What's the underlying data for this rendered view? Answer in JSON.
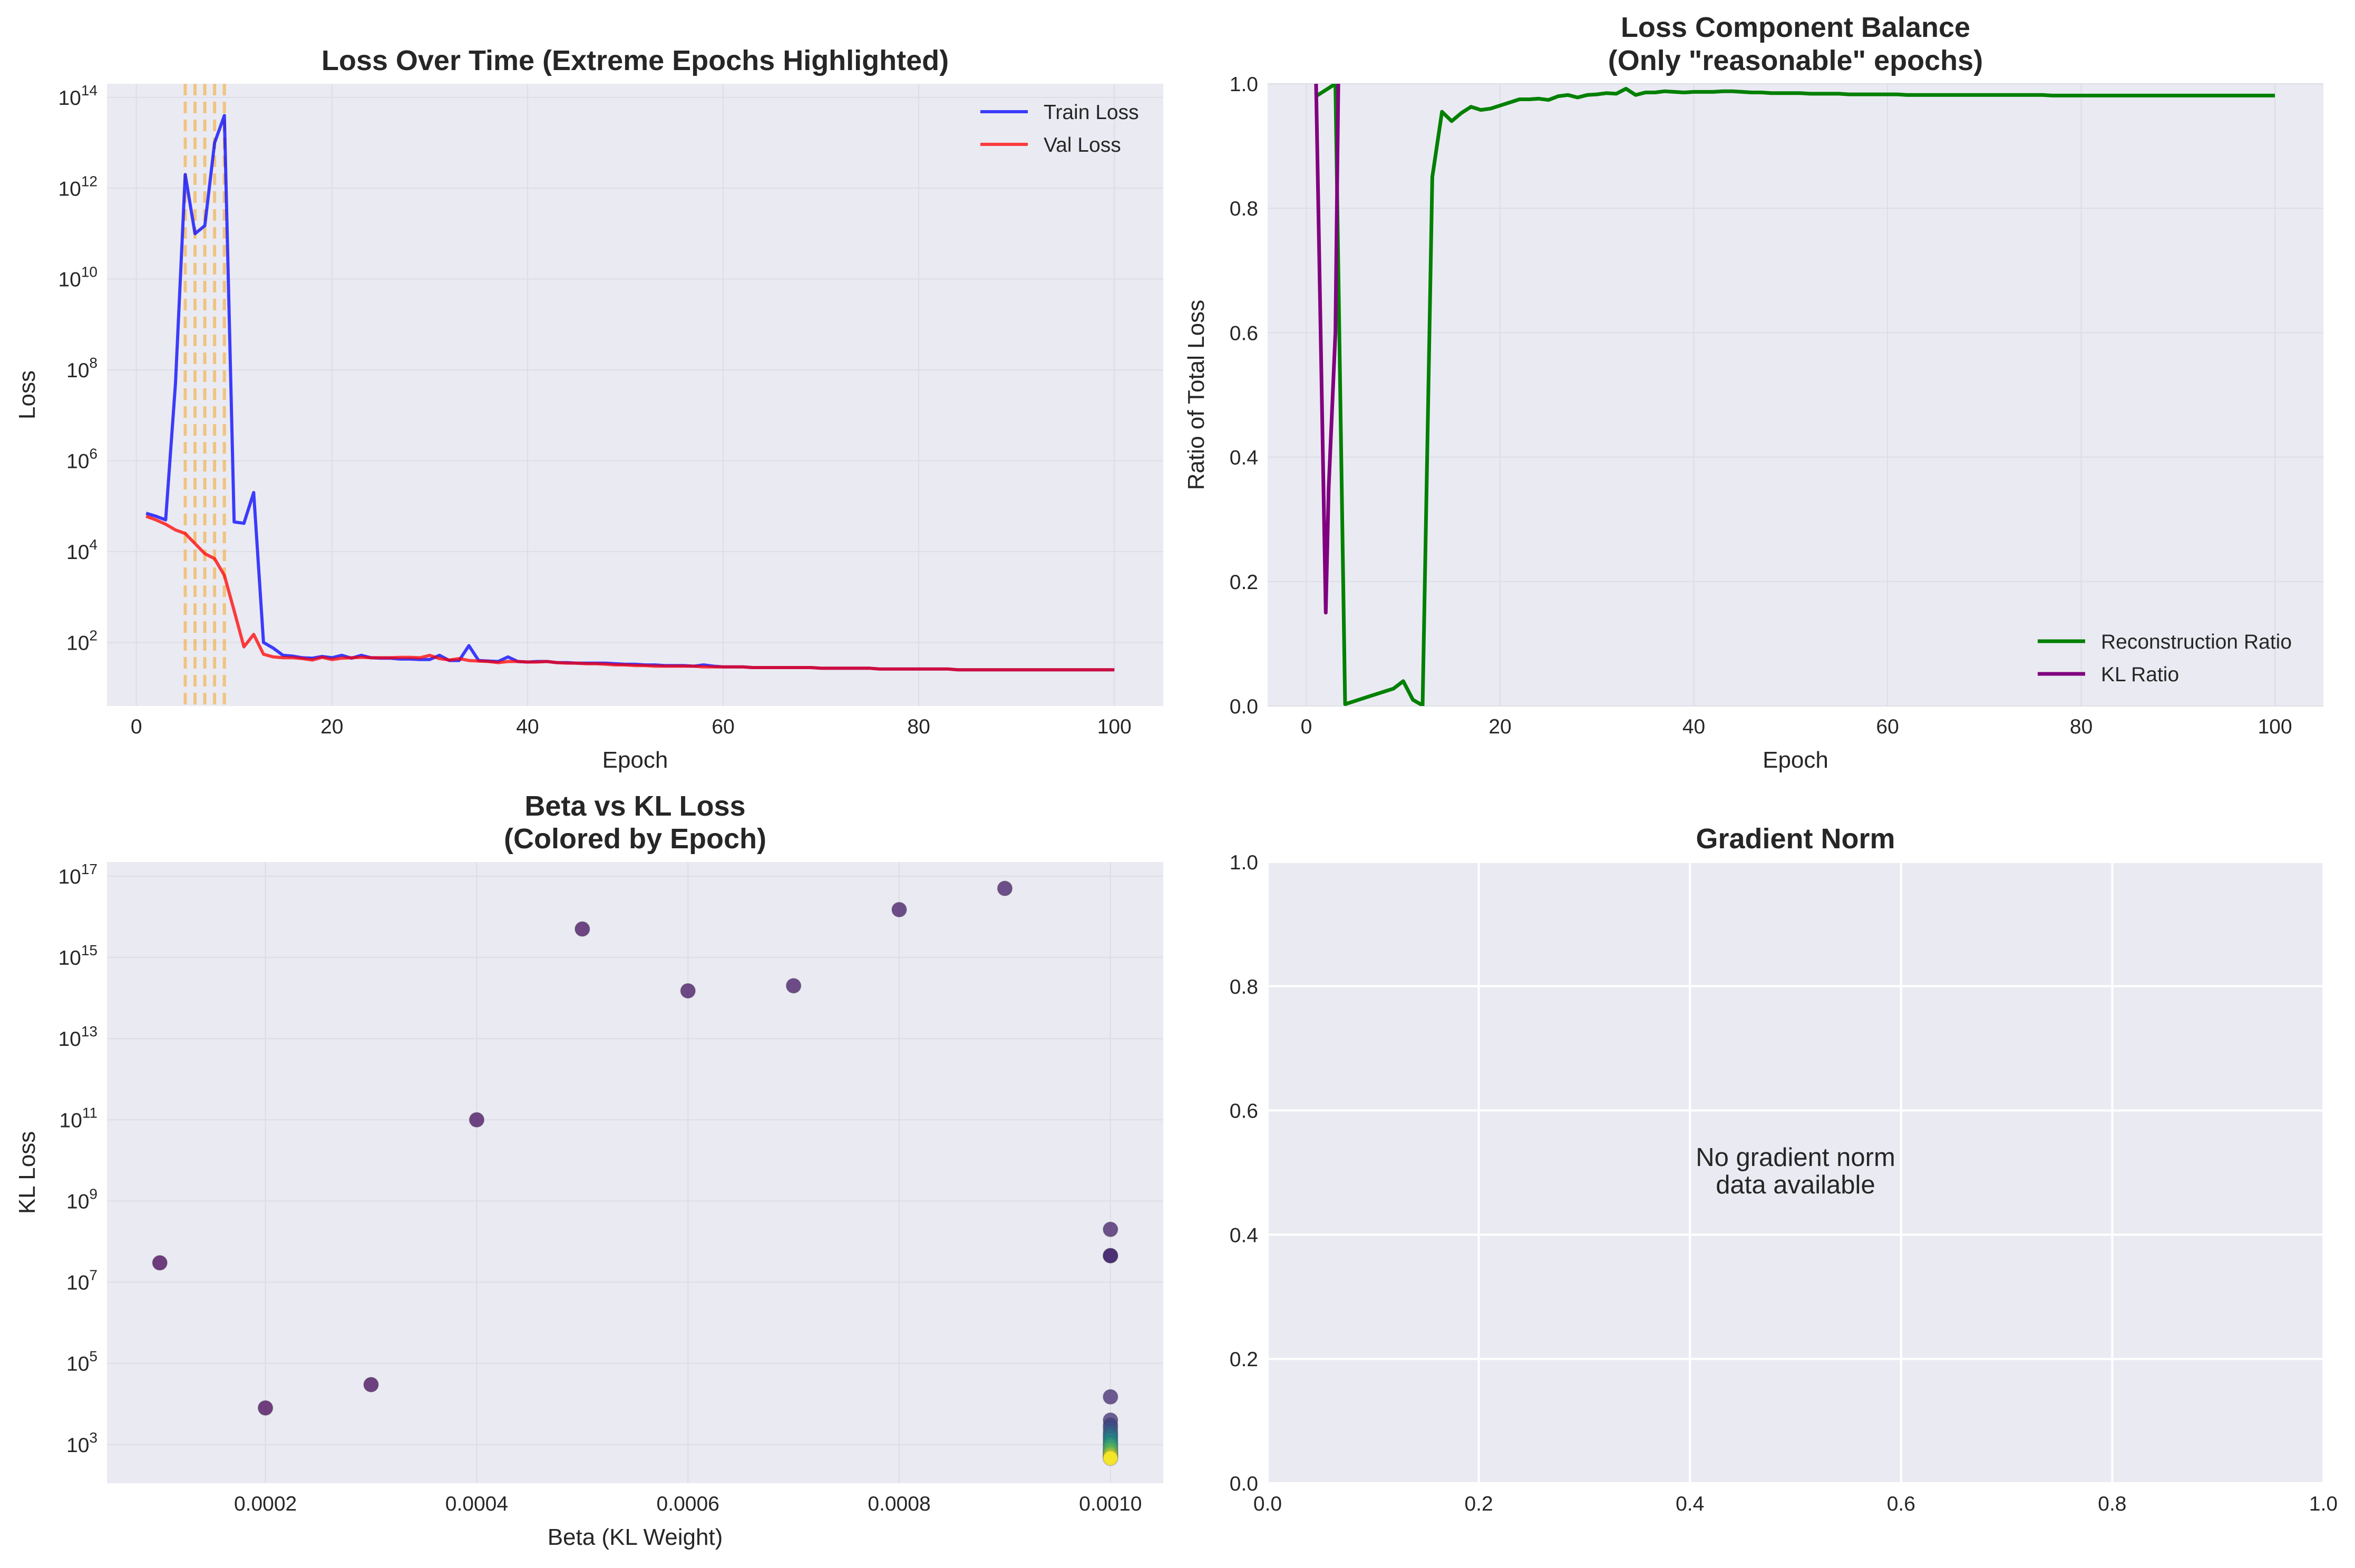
{
  "chart_data": [
    {
      "type": "line",
      "title": "Loss Over Time (Extreme Epochs Highlighted)",
      "xlabel": "Epoch",
      "ylabel": "Loss",
      "yscale": "log",
      "xlim": [
        -3,
        105
      ],
      "ylim_log10": [
        0.6,
        14.3
      ],
      "xticks": [
        "0",
        "20",
        "40",
        "60",
        "80",
        "100"
      ],
      "yticks": [
        "10",
        "10",
        "10",
        "10",
        "10",
        "10",
        "10"
      ],
      "ytick_exponents": [
        "2",
        "4",
        "6",
        "8",
        "10",
        "12",
        "14"
      ],
      "highlighted_epochs": [
        5,
        6,
        7,
        8,
        9
      ],
      "legend": "upper right",
      "grid": true,
      "x": [
        1,
        2,
        3,
        4,
        5,
        6,
        7,
        8,
        9,
        10,
        11,
        12,
        13,
        14,
        15,
        16,
        17,
        18,
        19,
        20,
        21,
        22,
        23,
        24,
        25,
        26,
        27,
        28,
        29,
        30,
        31,
        32,
        33,
        34,
        35,
        36,
        37,
        38,
        39,
        40,
        41,
        42,
        43,
        44,
        45,
        46,
        47,
        48,
        49,
        50,
        51,
        52,
        53,
        54,
        55,
        56,
        57,
        58,
        59,
        60,
        61,
        62,
        63,
        64,
        65,
        66,
        67,
        68,
        69,
        70,
        71,
        72,
        73,
        74,
        75,
        76,
        77,
        78,
        79,
        80,
        81,
        82,
        83,
        84,
        85,
        86,
        87,
        88,
        89,
        90,
        91,
        92,
        93,
        94,
        95,
        96,
        97,
        98,
        99,
        100
      ],
      "series": [
        {
          "name": "Train Loss",
          "color": "#0000ff",
          "values": [
            70000,
            60000,
            50000,
            50000000,
            2000000000000,
            100000000000,
            150000000000,
            10000000000000,
            40000000000000,
            45000,
            42000,
            200000,
            100,
            75,
            52,
            50,
            46,
            45,
            49,
            46,
            52,
            45,
            52,
            46,
            45,
            45,
            43,
            43,
            42,
            42,
            52,
            40,
            40,
            85,
            40,
            39,
            38,
            48,
            38,
            37,
            38,
            38,
            36,
            36,
            35,
            35,
            35,
            35,
            34,
            33,
            33,
            32,
            32,
            31,
            31,
            31,
            30,
            32,
            30,
            29,
            29,
            29,
            28,
            28,
            28,
            28,
            28,
            28,
            28,
            27,
            27,
            27,
            27,
            27,
            27,
            26,
            26,
            26,
            26,
            26,
            26,
            26,
            26,
            25,
            25,
            25,
            25,
            25,
            25,
            25,
            25,
            25,
            25,
            25,
            25,
            25,
            25,
            25,
            25,
            25
          ]
        },
        {
          "name": "Val Loss",
          "color": "#ff0000",
          "values": [
            60000,
            50000,
            40000,
            30000,
            25000,
            15000,
            9000,
            7000,
            3000,
            500,
            80,
            150,
            55,
            48,
            46,
            46,
            44,
            41,
            47,
            42,
            45,
            46,
            47,
            46,
            46,
            46,
            47,
            47,
            46,
            52,
            44,
            41,
            44,
            40,
            39,
            38,
            36,
            38,
            38,
            37,
            37,
            38,
            36,
            35,
            35,
            34,
            34,
            33,
            32,
            32,
            31,
            31,
            30,
            30,
            30,
            30,
            30,
            29,
            29,
            29,
            29,
            29,
            28,
            28,
            28,
            28,
            28,
            28,
            28,
            27,
            27,
            27,
            27,
            27,
            27,
            26,
            26,
            26,
            26,
            26,
            26,
            26,
            26,
            25,
            25,
            25,
            25,
            25,
            25,
            25,
            25,
            25,
            25,
            25,
            25,
            25,
            25,
            25,
            25,
            25
          ]
        }
      ]
    },
    {
      "type": "line",
      "title": "Loss Component Balance",
      "subtitle": "(Only \"reasonable\" epochs)",
      "xlabel": "Epoch",
      "ylabel": "Ratio of Total Loss",
      "xlim": [
        -4,
        105
      ],
      "ylim": [
        0,
        1
      ],
      "xticks": [
        "0",
        "20",
        "40",
        "60",
        "80",
        "100"
      ],
      "yticks": [
        "0.0",
        "0.2",
        "0.4",
        "0.6",
        "0.8",
        "1.0"
      ],
      "legend": "lower right",
      "grid": true,
      "series": [
        {
          "name": "Reconstruction Ratio",
          "color": "#008000",
          "x": [
            1,
            2,
            3,
            4,
            5,
            6,
            7,
            8,
            9,
            10,
            11,
            12,
            13,
            14,
            15,
            16,
            17,
            18,
            19,
            20,
            21,
            22,
            23,
            24,
            25,
            26,
            27,
            28,
            29,
            30,
            31,
            32,
            33,
            34,
            35,
            36,
            37,
            38,
            39,
            40,
            41,
            42,
            43,
            44,
            45,
            46,
            47,
            48,
            49,
            50,
            51,
            52,
            53,
            54,
            55,
            56,
            57,
            58,
            59,
            60,
            61,
            62,
            63,
            64,
            65,
            66,
            67,
            68,
            69,
            70,
            71,
            72,
            73,
            74,
            75,
            76,
            77,
            78,
            79,
            80,
            81,
            82,
            83,
            84,
            85,
            86,
            87,
            88,
            89,
            90,
            91,
            92,
            93,
            94,
            95,
            96,
            97,
            98,
            99,
            100
          ],
          "values": [
            0.98,
            0.99,
            1.0,
            0.003,
            0.008,
            0.013,
            0.018,
            0.023,
            0.028,
            0.04,
            0.01,
            0.001,
            0.85,
            0.955,
            0.94,
            0.953,
            0.963,
            0.958,
            0.96,
            0.965,
            0.97,
            0.975,
            0.975,
            0.976,
            0.974,
            0.98,
            0.982,
            0.978,
            0.982,
            0.983,
            0.985,
            0.984,
            0.992,
            0.982,
            0.986,
            0.986,
            0.988,
            0.987,
            0.986,
            0.987,
            0.987,
            0.987,
            0.988,
            0.988,
            0.987,
            0.986,
            0.986,
            0.985,
            0.985,
            0.985,
            0.985,
            0.984,
            0.984,
            0.984,
            0.984,
            0.983,
            0.983,
            0.983,
            0.983,
            0.983,
            0.983,
            0.982,
            0.982,
            0.982,
            0.982,
            0.982,
            0.982,
            0.982,
            0.982,
            0.982,
            0.982,
            0.982,
            0.982,
            0.982,
            0.982,
            0.982,
            0.981,
            0.981,
            0.981,
            0.981,
            0.981,
            0.981,
            0.981,
            0.981,
            0.981,
            0.981,
            0.981,
            0.981,
            0.981,
            0.981,
            0.981,
            0.981,
            0.981,
            0.981,
            0.981,
            0.981,
            0.981,
            0.981,
            0.981,
            0.981
          ]
        },
        {
          "name": "KL Ratio",
          "color": "#800080",
          "x": [
            1,
            2,
            2.3,
            3,
            3.3
          ],
          "values": [
            1.0,
            0.15,
            0.35,
            0.6,
            1.0
          ]
        }
      ]
    },
    {
      "type": "scatter",
      "title": "Beta vs KL Loss",
      "subtitle": "(Colored by Epoch)",
      "xlabel": "Beta (KL Weight)",
      "ylabel": "KL Loss",
      "yscale": "log",
      "xlim": [
        5e-05,
        0.00105
      ],
      "ylim_log10": [
        2.05,
        17.35
      ],
      "xticks": [
        "0.0002",
        "0.0004",
        "0.0006",
        "0.0008",
        "0.0010"
      ],
      "yticks": [
        "10",
        "10",
        "10",
        "10",
        "10",
        "10",
        "10",
        "10"
      ],
      "ytick_exponents": [
        "3",
        "5",
        "7",
        "9",
        "11",
        "13",
        "15",
        "17"
      ],
      "grid": true,
      "colormap": "viridis",
      "points": [
        {
          "x": 0.0001,
          "y": 30000000,
          "epoch": 1
        },
        {
          "x": 0.0002,
          "y": 8000,
          "epoch": 2
        },
        {
          "x": 0.0003,
          "y": 30000,
          "epoch": 3
        },
        {
          "x": 0.0004,
          "y": 100000000000,
          "epoch": 4
        },
        {
          "x": 0.0005,
          "y": 5000000000000000,
          "epoch": 5
        },
        {
          "x": 0.0006,
          "y": 150000000000000,
          "epoch": 6
        },
        {
          "x": 0.0007,
          "y": 200000000000000,
          "epoch": 7
        },
        {
          "x": 0.0008,
          "y": 15000000000000000,
          "epoch": 8
        },
        {
          "x": 0.0009,
          "y": 50000000000000000,
          "epoch": 9
        },
        {
          "x": 0.001,
          "y": 200000000,
          "epoch": 10
        },
        {
          "x": 0.001,
          "y": 45000000,
          "epoch": 11
        },
        {
          "x": 0.001,
          "y": 45000000,
          "epoch": 12
        },
        {
          "x": 0.001,
          "y": 15000,
          "epoch": 13
        },
        {
          "x": 0.001,
          "y": 4000,
          "epoch": 15
        },
        {
          "x": 0.001,
          "y": 3000,
          "epoch": 20
        },
        {
          "x": 0.001,
          "y": 2500,
          "epoch": 25
        },
        {
          "x": 0.001,
          "y": 2000,
          "epoch": 30
        },
        {
          "x": 0.001,
          "y": 1700,
          "epoch": 35
        },
        {
          "x": 0.001,
          "y": 1500,
          "epoch": 40
        },
        {
          "x": 0.001,
          "y": 1300,
          "epoch": 45
        },
        {
          "x": 0.001,
          "y": 1100,
          "epoch": 50
        },
        {
          "x": 0.001,
          "y": 1000,
          "epoch": 55
        },
        {
          "x": 0.001,
          "y": 900,
          "epoch": 60
        },
        {
          "x": 0.001,
          "y": 800,
          "epoch": 65
        },
        {
          "x": 0.001,
          "y": 720,
          "epoch": 70
        },
        {
          "x": 0.001,
          "y": 650,
          "epoch": 75
        },
        {
          "x": 0.001,
          "y": 600,
          "epoch": 80
        },
        {
          "x": 0.001,
          "y": 560,
          "epoch": 85
        },
        {
          "x": 0.001,
          "y": 520,
          "epoch": 90
        },
        {
          "x": 0.001,
          "y": 490,
          "epoch": 95
        },
        {
          "x": 0.001,
          "y": 460,
          "epoch": 100
        }
      ]
    },
    {
      "type": "line",
      "title": "Gradient Norm",
      "xlim": [
        0,
        1
      ],
      "ylim": [
        0,
        1
      ],
      "xticks": [
        "0.0",
        "0.2",
        "0.4",
        "0.6",
        "0.8",
        "1.0"
      ],
      "yticks": [
        "0.0",
        "0.2",
        "0.4",
        "0.6",
        "0.8",
        "1.0"
      ],
      "grid": true,
      "message_line1": "No gradient norm",
      "message_line2": "data available"
    }
  ]
}
